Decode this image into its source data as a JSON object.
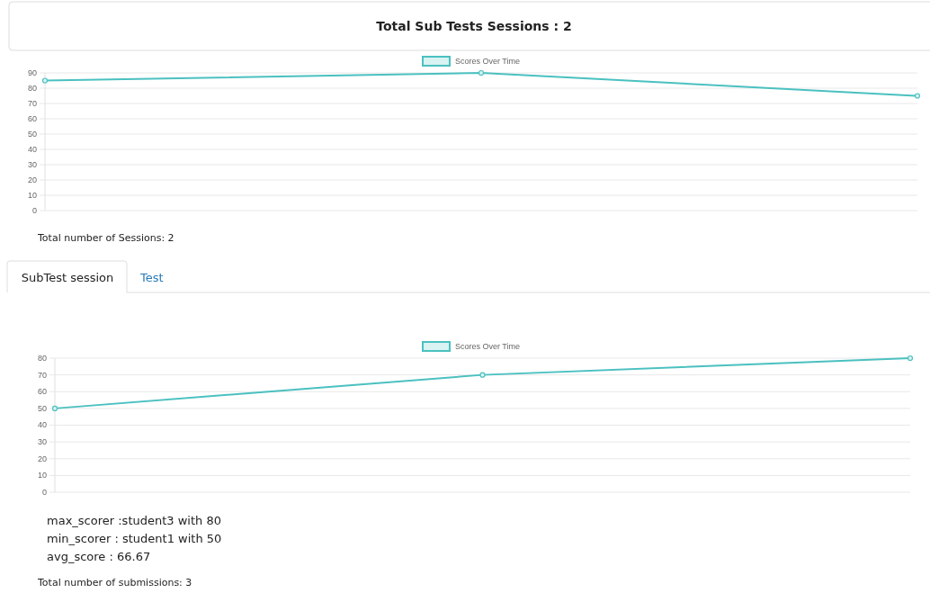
{
  "chart_data": [
    {
      "type": "line",
      "title": "Total Sub Tests Sessions : 2",
      "categories": [
        null,
        null,
        null
      ],
      "series": [
        {
          "name": "Scores Over Time",
          "color": "#4bc0c0",
          "values": [
            85,
            90,
            75
          ]
        }
      ],
      "ylim": [
        0,
        90
      ],
      "yticks": [
        0,
        10,
        20,
        30,
        40,
        50,
        60,
        70,
        80,
        90
      ],
      "grid": "y",
      "legend": "top",
      "marker": "circle",
      "annotations": [
        "Total number of Sessions: 2"
      ]
    },
    {
      "type": "line",
      "categories": [
        null,
        null,
        null
      ],
      "series": [
        {
          "name": "Scores Over Time",
          "color": "#4bc0c0",
          "values": [
            50,
            70,
            80
          ]
        }
      ],
      "ylim": [
        0,
        80
      ],
      "yticks": [
        0,
        10,
        20,
        30,
        40,
        50,
        60,
        70,
        80
      ],
      "grid": "y",
      "legend": "top",
      "marker": "circle",
      "annotations": [
        "SubTest session",
        "Test",
        "max_scorer :student3 with 80",
        "min_scorer : student1 with 50",
        "avg_score : 66.67",
        "Total number of submissions: 3"
      ]
    }
  ]
}
